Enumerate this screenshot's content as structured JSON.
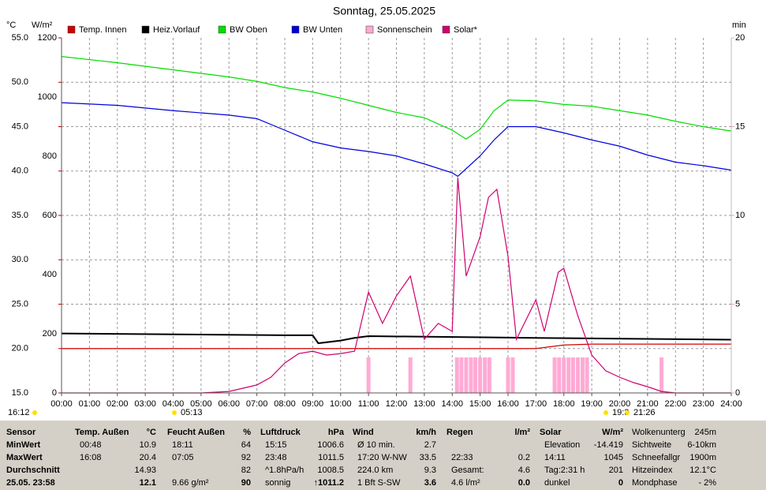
{
  "chart_data": {
    "type": "line",
    "title": "Sonntag, 25.05.2025",
    "ylabel": "°C",
    "y2label": "W/m²",
    "y3label": "min",
    "xlim": [
      0,
      24
    ],
    "xticks": [
      {
        "value": 0,
        "label": "00:00"
      },
      {
        "value": 1,
        "label": "01:00"
      },
      {
        "value": 2,
        "label": "02:00"
      },
      {
        "value": 3,
        "label": "03:00"
      },
      {
        "value": 4,
        "label": "04:00"
      },
      {
        "value": 5,
        "label": "05:00"
      },
      {
        "value": 6,
        "label": "06:00"
      },
      {
        "value": 7,
        "label": "07:00"
      },
      {
        "value": 8,
        "label": "08:00"
      },
      {
        "value": 9,
        "label": "09:00"
      },
      {
        "value": 10,
        "label": "10:00"
      },
      {
        "value": 11,
        "label": "11:00"
      },
      {
        "value": 12,
        "label": "12:00"
      },
      {
        "value": 13,
        "label": "13:00"
      },
      {
        "value": 14,
        "label": "14:00"
      },
      {
        "value": 15,
        "label": "15:00"
      },
      {
        "value": 16,
        "label": "16:00"
      },
      {
        "value": 17,
        "label": "17:00"
      },
      {
        "value": 18,
        "label": "18:00"
      },
      {
        "value": 19,
        "label": "19:00"
      },
      {
        "value": 20,
        "label": "20:00"
      },
      {
        "value": 21,
        "label": "21:00"
      },
      {
        "value": 22,
        "label": "22:00"
      },
      {
        "value": 23,
        "label": "23:00"
      },
      {
        "value": 24,
        "label": "24:00"
      }
    ],
    "ylim": [
      15,
      55
    ],
    "yticks": [
      {
        "value": 15,
        "label": "15.0"
      },
      {
        "value": 20,
        "label": "20.0"
      },
      {
        "value": 25,
        "label": "25.0"
      },
      {
        "value": 30,
        "label": "30.0"
      },
      {
        "value": 35,
        "label": "35.0"
      },
      {
        "value": 40,
        "label": "40.0"
      },
      {
        "value": 45,
        "label": "45.0"
      },
      {
        "value": 50,
        "label": "50.0"
      },
      {
        "value": 55,
        "label": "55.0"
      }
    ],
    "y2lim": [
      0,
      1200
    ],
    "y2ticks": [
      0,
      200,
      400,
      600,
      800,
      1000,
      1200
    ],
    "y3lim": [
      0,
      20
    ],
    "y3ticks": [
      0,
      5,
      10,
      15,
      20
    ],
    "grid": true,
    "series": [
      {
        "name": "Temp. Innen",
        "color": "#d00000",
        "axis": "y",
        "x": [
          0,
          17,
          18,
          19,
          24
        ],
        "values": [
          20.0,
          20.0,
          20.4,
          20.5,
          20.5
        ]
      },
      {
        "name": "Heiz.Vorlauf",
        "color": "#000000",
        "axis": "y",
        "x": [
          0,
          8,
          9,
          9.2,
          10,
          10.5,
          11,
          17,
          24
        ],
        "values": [
          21.7,
          21.5,
          21.5,
          20.6,
          20.9,
          21.2,
          21.4,
          21.2,
          21.0
        ]
      },
      {
        "name": "BW Oben",
        "color": "#00dd00",
        "axis": "y",
        "x": [
          0,
          2,
          4,
          6,
          7,
          8,
          9,
          10,
          11,
          12,
          13,
          14,
          14.5,
          15,
          15.5,
          16,
          17,
          18,
          19,
          20,
          21,
          22,
          23,
          24
        ],
        "values": [
          52.9,
          52.2,
          51.4,
          50.6,
          50.1,
          49.4,
          48.9,
          48.2,
          47.4,
          46.6,
          46.0,
          44.6,
          43.6,
          44.7,
          46.8,
          48.0,
          47.9,
          47.5,
          47.3,
          46.8,
          46.3,
          45.6,
          45.0,
          44.5
        ]
      },
      {
        "name": "BW Unten",
        "color": "#0000dd",
        "axis": "y",
        "x": [
          0,
          2,
          4,
          6,
          7,
          8,
          9,
          10,
          11,
          12,
          13,
          14,
          14.2,
          15,
          15.5,
          16,
          17,
          18,
          19,
          20,
          21,
          22,
          23,
          24
        ],
        "values": [
          47.7,
          47.4,
          46.8,
          46.3,
          45.9,
          44.6,
          43.3,
          42.6,
          42.2,
          41.7,
          40.8,
          39.8,
          39.4,
          41.7,
          43.5,
          45.0,
          45.0,
          44.3,
          43.5,
          42.8,
          41.8,
          41.0,
          40.6,
          40.1
        ]
      },
      {
        "name": "Sonnenschein",
        "color": "#ffaad4",
        "axis": "y3",
        "x": [
          11.0,
          12.5,
          14.17,
          14.33,
          14.5,
          14.67,
          14.83,
          15.0,
          15.17,
          15.33,
          16.0,
          16.17,
          17.67,
          17.83,
          18.0,
          18.17,
          18.33,
          18.5,
          18.67,
          18.83,
          21.5
        ],
        "values": [
          2,
          2,
          2,
          2,
          2,
          2,
          2,
          2,
          2,
          2,
          2,
          2,
          2,
          2,
          2,
          2,
          2,
          2,
          2,
          2,
          2
        ]
      },
      {
        "name": "Solar*",
        "color": "#d0006f",
        "axis": "y2",
        "x": [
          0,
          5,
          6,
          7,
          7.5,
          8,
          8.5,
          9,
          9.5,
          10,
          10.5,
          11,
          11.5,
          12,
          12.5,
          13,
          13.5,
          14,
          14.2,
          14.5,
          15,
          15.3,
          15.6,
          16,
          16.3,
          17,
          17.3,
          17.8,
          18,
          18.5,
          19,
          19.5,
          20,
          20.5,
          21,
          21.5,
          22,
          24
        ],
        "values": [
          0,
          0,
          5,
          27,
          53,
          101,
          133,
          141,
          128,
          133,
          141,
          341,
          235,
          328,
          395,
          181,
          235,
          208,
          728,
          395,
          528,
          661,
          688,
          461,
          181,
          315,
          208,
          408,
          421,
          261,
          128,
          75,
          53,
          35,
          21,
          5,
          0,
          0
        ]
      }
    ],
    "markers": [
      "16:12",
      "05:13",
      "19:3",
      "21:26"
    ]
  },
  "summary": {
    "columns": [
      {
        "title": "Sensor",
        "rows": [
          {
            "label": "MinWert"
          },
          {
            "label": "MaxWert"
          },
          {
            "label": "Durchschnitt"
          },
          {
            "label": "25.05. 23:58"
          }
        ]
      },
      {
        "title": "Temp. Außen",
        "unit": "°C",
        "rows": [
          {
            "label": "00:48",
            "value": "10.9"
          },
          {
            "label": "16:08",
            "value": "20.4"
          },
          {
            "value": "14.93"
          },
          {
            "value": "12.1"
          }
        ]
      },
      {
        "title": "Feucht Außen",
        "unit": "%",
        "rows": [
          {
            "label": "18:11",
            "value": "64"
          },
          {
            "label": "07:05",
            "value": "92"
          },
          {
            "value": "82"
          },
          {
            "label": "9.66 g/m²",
            "value": "90"
          }
        ]
      },
      {
        "title": "Luftdruck",
        "unit": "hPa",
        "rows": [
          {
            "label": "15:15",
            "value": "1006.6"
          },
          {
            "label": "23:48",
            "value": "1011.5"
          },
          {
            "label": "^1.8hPa/h",
            "value": "1008.5"
          },
          {
            "label": "sonnig",
            "value": "↑1011.2"
          }
        ]
      },
      {
        "title": "Wind",
        "unit": "km/h",
        "rows": [
          {
            "label": "Ø 10 min.",
            "value": "2.7"
          },
          {
            "label": "17:20  W-NW",
            "value": "33.5"
          },
          {
            "label": "224.0 km",
            "value": "9.3"
          },
          {
            "label": "1 Bft S-SW",
            "value": "3.6"
          }
        ]
      },
      {
        "title": "Regen",
        "unit": "l/m²",
        "rows": [
          {},
          {
            "label": "22:33",
            "value": "0.2"
          },
          {
            "label": "Gesamt:",
            "value": "4.6"
          },
          {
            "label": "4.6 l/m²",
            "value": "0.0"
          }
        ]
      },
      {
        "title": "Solar",
        "unit": "W/m²",
        "rows": [
          {
            "label": "Elevation",
            "value": "-14.419"
          },
          {
            "label": "14:11",
            "value": "1045"
          },
          {
            "label": "Tag:2:31 h",
            "value": "201"
          },
          {
            "label": "dunkel",
            "value": "0"
          }
        ]
      },
      {
        "rows": [
          {
            "label": "Wolkenunterg",
            "value": "245m"
          },
          {
            "label": "Sichtweite",
            "value": "6-10km"
          },
          {
            "label": "Schneefallgr",
            "value": "1900m"
          },
          {
            "label": "Hitzeindex",
            "value": "12.1°C"
          },
          {
            "label": "Mondphase",
            "value": "- 2%"
          }
        ]
      }
    ]
  }
}
